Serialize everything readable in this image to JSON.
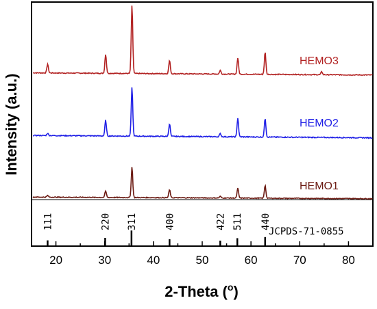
{
  "chart_data": {
    "type": "line",
    "xlabel": "2-Theta (",
    "xlabel_unit": "o",
    "xlabel_close": ")",
    "ylabel": "Intensity (a.u.)",
    "xlim": [
      15,
      85
    ],
    "xticks": [
      20,
      30,
      40,
      50,
      60,
      70,
      80
    ],
    "grid": false,
    "series": [
      {
        "name": "HEMO3",
        "color": "#b22222",
        "baseline": 0.06,
        "noise": 0.012,
        "peaks": [
          {
            "x": 18.3,
            "h": 0.12
          },
          {
            "x": 30.2,
            "h": 0.26
          },
          {
            "x": 35.6,
            "h": 0.92
          },
          {
            "x": 43.3,
            "h": 0.18
          },
          {
            "x": 53.7,
            "h": 0.05
          },
          {
            "x": 57.3,
            "h": 0.22
          },
          {
            "x": 62.9,
            "h": 0.3
          },
          {
            "x": 74.5,
            "h": 0.04
          }
        ]
      },
      {
        "name": "HEMO2",
        "color": "#1f1fe6",
        "baseline": 0.06,
        "noise": 0.012,
        "peaks": [
          {
            "x": 18.3,
            "h": 0.03
          },
          {
            "x": 30.2,
            "h": 0.2
          },
          {
            "x": 35.6,
            "h": 0.62
          },
          {
            "x": 43.3,
            "h": 0.16
          },
          {
            "x": 53.7,
            "h": 0.04
          },
          {
            "x": 57.3,
            "h": 0.24
          },
          {
            "x": 62.9,
            "h": 0.24
          }
        ]
      },
      {
        "name": "HEMO1",
        "color": "#6b1a12",
        "baseline": 0.04,
        "noise": 0.01,
        "peaks": [
          {
            "x": 18.3,
            "h": 0.02
          },
          {
            "x": 30.2,
            "h": 0.08
          },
          {
            "x": 35.6,
            "h": 0.38
          },
          {
            "x": 43.3,
            "h": 0.1
          },
          {
            "x": 53.7,
            "h": 0.02
          },
          {
            "x": 57.3,
            "h": 0.12
          },
          {
            "x": 62.9,
            "h": 0.16
          }
        ]
      }
    ],
    "reference": {
      "name": "JCPDS-71-0855",
      "lines": [
        {
          "x": 18.3,
          "label": "111",
          "h": 0.06
        },
        {
          "x": 30.1,
          "label": "220",
          "h": 0.15
        },
        {
          "x": 35.5,
          "label": "311",
          "h": 0.42
        },
        {
          "x": 43.3,
          "label": "400",
          "h": 0.1
        },
        {
          "x": 53.7,
          "label": "422",
          "h": 0.05
        },
        {
          "x": 57.2,
          "label": "511",
          "h": 0.14
        },
        {
          "x": 62.9,
          "label": "440",
          "h": 0.18
        }
      ]
    }
  }
}
